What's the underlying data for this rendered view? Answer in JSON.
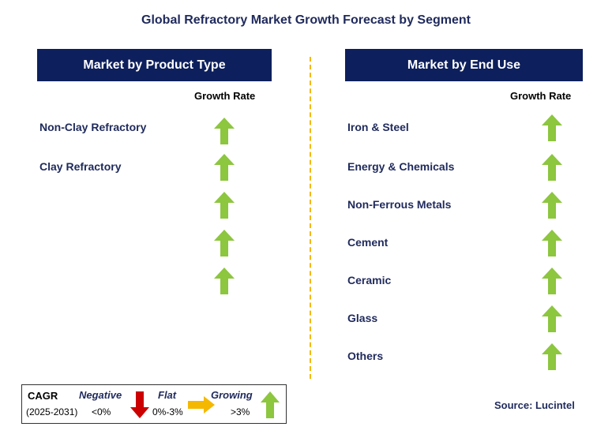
{
  "title": "Global Refractory Market Growth Forecast by Segment",
  "left_panel": {
    "header": "Market by Product Type",
    "column_label": "Growth Rate",
    "rows": [
      "Non-Clay Refractory",
      "Clay Refractory"
    ],
    "arrow_count": 5,
    "arrow_direction": "growing"
  },
  "right_panel": {
    "header": "Market by End Use",
    "column_label": "Growth Rate",
    "rows": [
      "Iron & Steel",
      "Energy & Chemicals",
      "Non-Ferrous Metals",
      "Cement",
      "Ceramic",
      "Glass",
      "Others"
    ],
    "arrow_direction": "growing"
  },
  "legend": {
    "cagr_label": "CAGR",
    "period": "(2025-2031)",
    "negative_label": "Negative",
    "negative_range": "<0%",
    "flat_label": "Flat",
    "flat_range": "0%-3%",
    "growing_label": "Growing",
    "growing_range": ">3%"
  },
  "source": "Source: Lucintel",
  "colors": {
    "header_bg": "#0d1f5c",
    "title_text": "#1f2a5c",
    "growing_arrow": "#8dc63f",
    "negative_arrow": "#cc0000",
    "flat_arrow": "#f5b800",
    "divider": "#f5b800"
  }
}
